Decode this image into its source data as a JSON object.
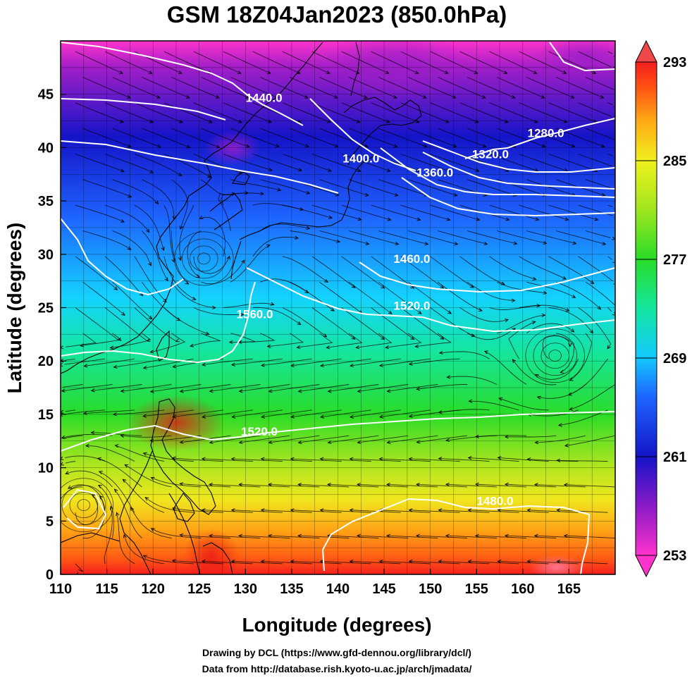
{
  "title": "GSM 18Z04Jan2023 (850.0hPa)",
  "xlabel": "Longitude (degrees)",
  "ylabel": "Latitude  (degrees)",
  "credit": {
    "line1": "Drawing by DCL (https://www.gfd-dennou.org/library/dcl/)",
    "line2": "Data from http://database.rish.kyoto-u.ac.jp/arch/jmadata/"
  },
  "chart_data": {
    "type": "heatmap",
    "variable_units": "K",
    "xlim": [
      110,
      170
    ],
    "ylim": [
      0,
      50
    ],
    "grid": true,
    "x_ticks": [
      "110",
      "115",
      "120",
      "125",
      "130",
      "135",
      "140",
      "145",
      "150",
      "155",
      "160",
      "165"
    ],
    "y_ticks": [
      "0",
      "5",
      "10",
      "15",
      "20",
      "25",
      "30",
      "35",
      "40",
      "45"
    ],
    "colorbar": {
      "placement": "right",
      "min": 253,
      "max": 293,
      "tick_labels": [
        "253",
        "261",
        "269",
        "277",
        "285",
        "293"
      ],
      "colors": [
        "#ff33cc",
        "#8a1ac7",
        "#1414c8",
        "#1e64ff",
        "#14c8ff",
        "#14e6a0",
        "#28dc28",
        "#a0e61e",
        "#f0f01e",
        "#ffaa14",
        "#ff5014",
        "#f51e1e"
      ]
    },
    "contour_labels": [
      {
        "text": "1440.0",
        "lon": 132,
        "lat": 44.3
      },
      {
        "text": "1400.0",
        "lon": 142.5,
        "lat": 38.6
      },
      {
        "text": "1360.0",
        "lon": 150.5,
        "lat": 37.3
      },
      {
        "text": "1320.0",
        "lon": 156.5,
        "lat": 39.0
      },
      {
        "text": "1280.0",
        "lon": 162.5,
        "lat": 41.0
      },
      {
        "text": "1460.0",
        "lon": 148,
        "lat": 29.2
      },
      {
        "text": "1520.0",
        "lon": 148,
        "lat": 24.8
      },
      {
        "text": "1560.0",
        "lon": 131,
        "lat": 24.0
      },
      {
        "text": "1520.0",
        "lon": 131.5,
        "lat": 13.0
      },
      {
        "text": "1480.0",
        "lon": 157,
        "lat": 6.5
      }
    ],
    "vortices": [
      {
        "lon": 125.5,
        "lat": 29.6,
        "name": "cyclone"
      },
      {
        "lon": 112.5,
        "lat": 6.5,
        "name": "cyclone"
      },
      {
        "lon": 163.5,
        "lat": 20.5,
        "name": "anticyclone"
      }
    ]
  }
}
